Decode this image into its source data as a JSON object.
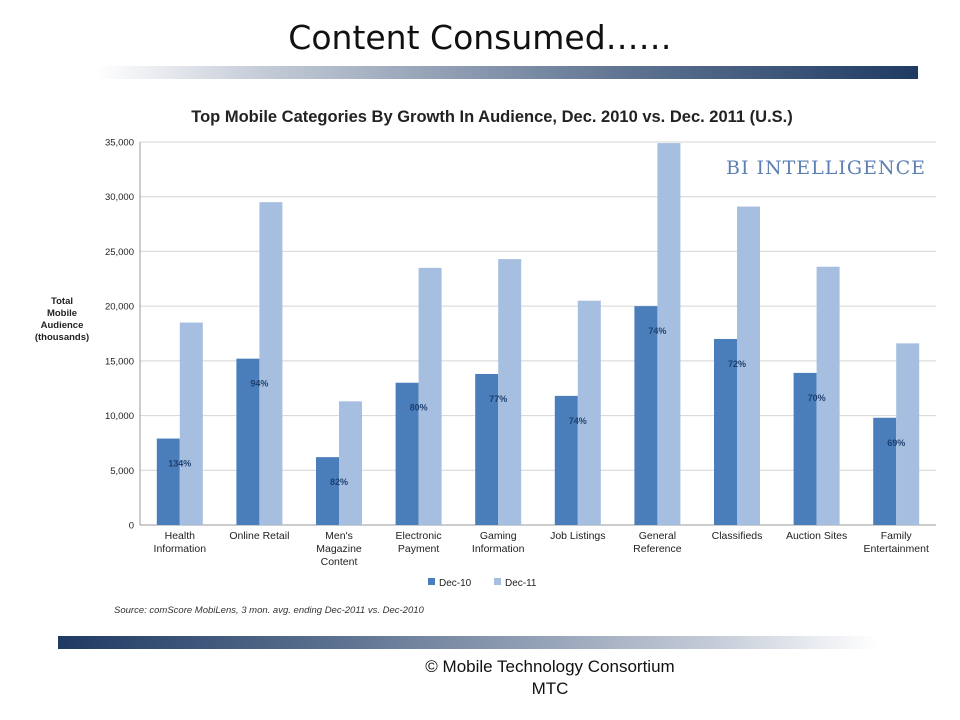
{
  "slide": {
    "title": "Content Consumed……",
    "footer_line1": "©  Mobile Technology Consortium",
    "footer_line2": "MTC"
  },
  "chart_data": {
    "type": "bar",
    "title": "Top Mobile Categories By Growth In Audience, Dec. 2010 vs. Dec. 2011 (U.S.)",
    "brand": "BI INTELLIGENCE",
    "ylabel": [
      "Total",
      "Mobile",
      "Audience",
      "(thousands)"
    ],
    "ylim": [
      0,
      35000
    ],
    "yticks": [
      0,
      5000,
      10000,
      15000,
      20000,
      25000,
      30000,
      35000
    ],
    "ytick_labels": [
      "0",
      "5,000",
      "10,000",
      "15,000",
      "20,000",
      "25,000",
      "30,000",
      "35,000"
    ],
    "grid": true,
    "legend_position": "bottom",
    "categories": [
      [
        "Health",
        "Information"
      ],
      [
        "Online Retail"
      ],
      [
        "Men's",
        "Magazine",
        "Content"
      ],
      [
        "Electronic",
        "Payment"
      ],
      [
        "Gaming",
        "Information"
      ],
      [
        "Job Listings"
      ],
      [
        "General",
        "Reference"
      ],
      [
        "Classifieds"
      ],
      [
        "Auction Sites"
      ],
      [
        "Family",
        "Entertainment"
      ]
    ],
    "series": [
      {
        "name": "Dec-10",
        "color": "#4a7ebb",
        "values": [
          7900,
          15200,
          6200,
          13000,
          13800,
          11800,
          20000,
          17000,
          13900,
          9800
        ]
      },
      {
        "name": "Dec-11",
        "color": "#a6bfe0",
        "values": [
          18500,
          29500,
          11300,
          23500,
          24300,
          20500,
          34900,
          29100,
          23600,
          16600
        ]
      }
    ],
    "growth_labels": [
      "134%",
      "94%",
      "82%",
      "80%",
      "77%",
      "74%",
      "74%",
      "72%",
      "70%",
      "69%"
    ],
    "source": "Source: comScore MobiLens, 3 mon. avg. ending Dec-2011 vs. Dec-2010"
  }
}
